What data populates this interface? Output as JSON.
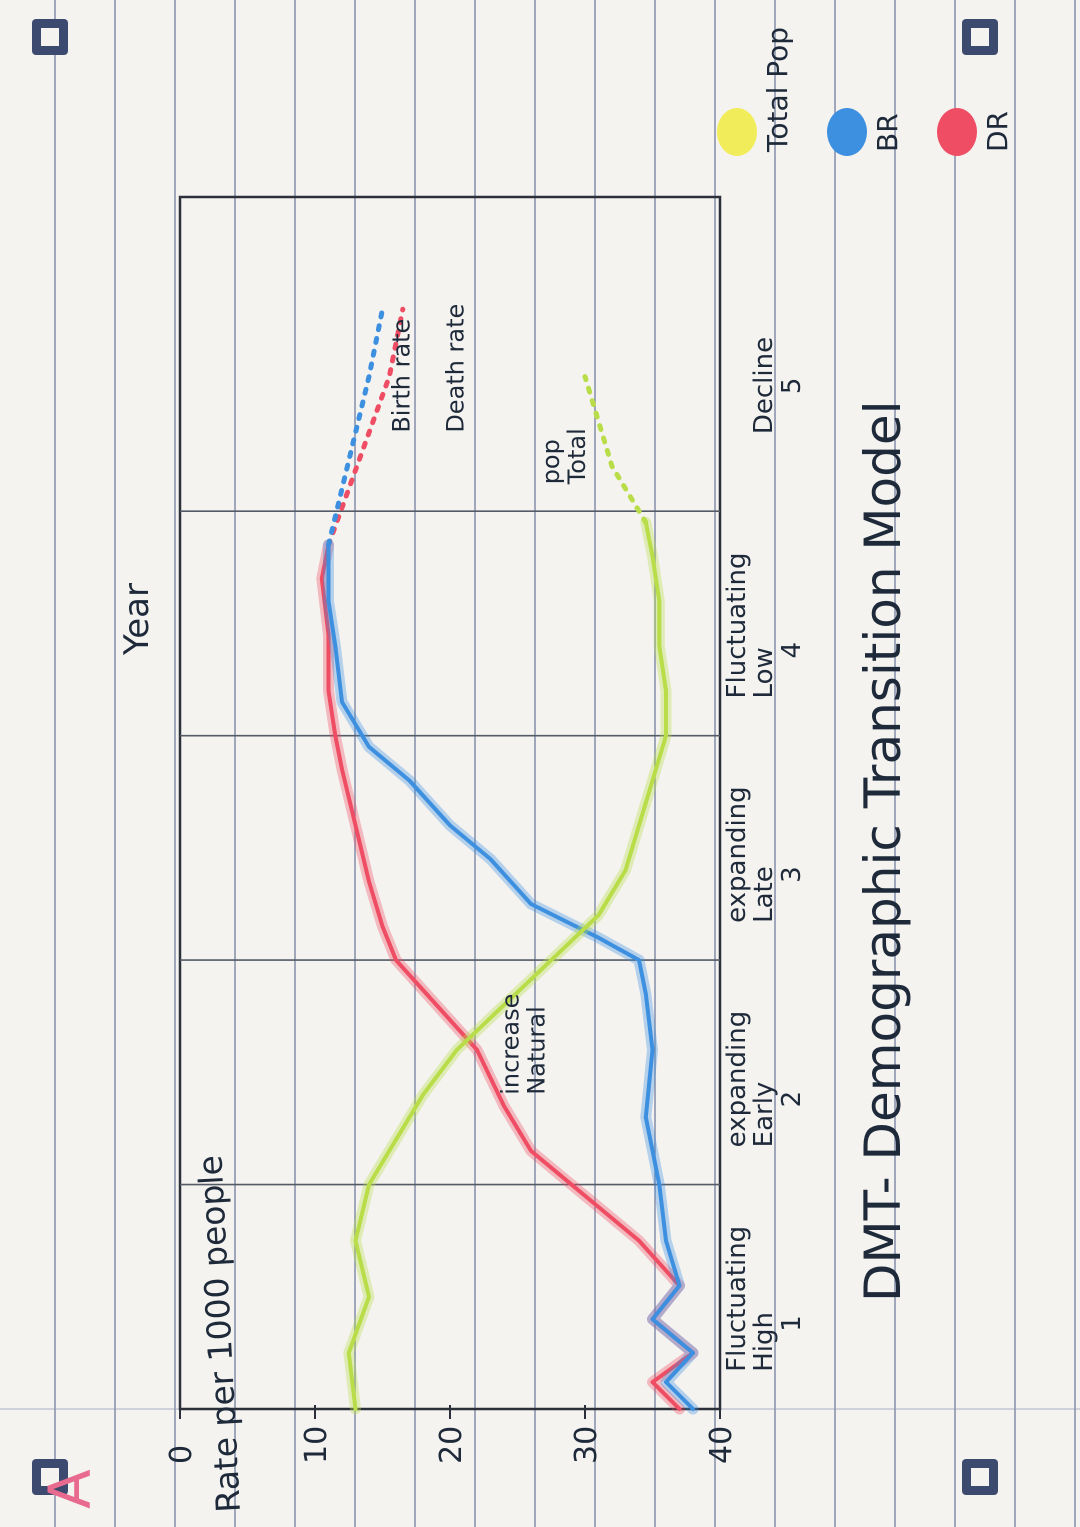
{
  "page": {
    "title": "DMT- Demographic Transition Model",
    "corner_letter": "A",
    "binder_icons": [
      "binder-clip-icon",
      "binder-clip-icon",
      "binder-clip-icon",
      "binder-clip-icon"
    ]
  },
  "chart_data": {
    "type": "line",
    "title": "DMT- Demographic Transition Model",
    "ylabel": "Rate per 1000 people",
    "xlabel": "Year",
    "ylim": [
      0,
      40
    ],
    "y_ticks": [
      {
        "value": 40,
        "label": "40"
      },
      {
        "value": 30,
        "label": "30"
      },
      {
        "value": 20,
        "label": "20"
      },
      {
        "value": 10,
        "label": "10"
      },
      {
        "value": 0,
        "label": "0"
      }
    ],
    "xlim": [
      0,
      5.4
    ],
    "stages": [
      {
        "number": "1",
        "name_lines": [
          "High",
          "Fluctuating"
        ],
        "start": 0,
        "end": 1
      },
      {
        "number": "2",
        "name_lines": [
          "Early",
          "expanding"
        ],
        "start": 1,
        "end": 2
      },
      {
        "number": "3",
        "name_lines": [
          "Late",
          "expanding"
        ],
        "start": 2,
        "end": 3
      },
      {
        "number": "4",
        "name_lines": [
          "Low",
          "Fluctuating"
        ],
        "start": 3,
        "end": 4
      },
      {
        "number": "5",
        "name_lines": [
          "Decline"
        ],
        "start": 4,
        "end": 5.4
      }
    ],
    "series": [
      {
        "name": "DR",
        "color": "#ee4d63",
        "x": [
          0,
          0.12,
          0.25,
          0.4,
          0.55,
          0.75,
          0.9,
          1.0,
          1.15,
          1.35,
          1.6,
          1.8,
          2.0,
          2.15,
          2.35,
          2.6,
          2.85,
          3.0,
          3.2,
          3.45,
          3.7,
          3.85
        ],
        "y": [
          37,
          35,
          38,
          35,
          37,
          34,
          31,
          29,
          26,
          24,
          22,
          19,
          16,
          15,
          14,
          13,
          12,
          11.5,
          11,
          11,
          10.5,
          11
        ],
        "projected": {
          "x": [
            3.85,
            4.1,
            4.35,
            4.6,
            4.9
          ],
          "y": [
            11,
            12.5,
            14,
            15.5,
            16.5
          ]
        }
      },
      {
        "name": "BR",
        "color": "#3d8fe0",
        "x": [
          0,
          0.12,
          0.25,
          0.4,
          0.55,
          0.75,
          1.0,
          1.3,
          1.6,
          1.85,
          2.0,
          2.1,
          2.25,
          2.45,
          2.6,
          2.8,
          2.95,
          3.15,
          3.4,
          3.6,
          3.85
        ],
        "y": [
          38,
          36,
          38,
          35,
          37,
          36,
          35.5,
          34.5,
          35,
          34.5,
          34,
          31,
          26,
          23,
          20,
          17,
          14,
          12,
          11.5,
          11,
          11
        ],
        "projected": {
          "x": [
            3.85,
            4.1,
            4.35,
            4.6,
            4.9
          ],
          "y": [
            11,
            12,
            13,
            14,
            15
          ]
        }
      },
      {
        "name": "Total Pop",
        "color": "#b8dd48",
        "x": [
          0,
          0.25,
          0.5,
          0.75,
          1.0,
          1.2,
          1.4,
          1.6,
          1.8,
          2.0,
          2.2,
          2.4,
          2.6,
          2.8,
          3.0,
          3.2,
          3.4,
          3.6,
          3.8,
          3.95
        ],
        "y": [
          13,
          12.5,
          14,
          13,
          14,
          16,
          18,
          20.5,
          24,
          27.5,
          31,
          33,
          34,
          35,
          36,
          36,
          35.5,
          35.5,
          35,
          34.5
        ],
        "projected": {
          "x": [
            3.95,
            4.2,
            4.4,
            4.6
          ],
          "y": [
            34.5,
            32,
            31,
            30
          ]
        }
      }
    ],
    "annotations": [
      {
        "text": "Natural increase",
        "lines": [
          "Natural",
          "increase"
        ],
        "x": 1.4,
        "y": 27
      },
      {
        "text": "Total pop",
        "lines": [
          "Total",
          "pop"
        ],
        "x": 4.12,
        "y": 30
      },
      {
        "text": "Death rate",
        "lines": [
          "Death rate"
        ],
        "x": 4.35,
        "y": 21
      },
      {
        "text": "Birth rate",
        "lines": [
          "Birth rate"
        ],
        "x": 4.35,
        "y": 17
      }
    ],
    "legend": {
      "placement": "right",
      "items": [
        {
          "label": "DR",
          "color": "#ee4d63"
        },
        {
          "label": "BR",
          "color": "#3d8fe0"
        },
        {
          "label": "Total Pop",
          "color": "#f1ec5a"
        }
      ]
    },
    "grid": true
  }
}
